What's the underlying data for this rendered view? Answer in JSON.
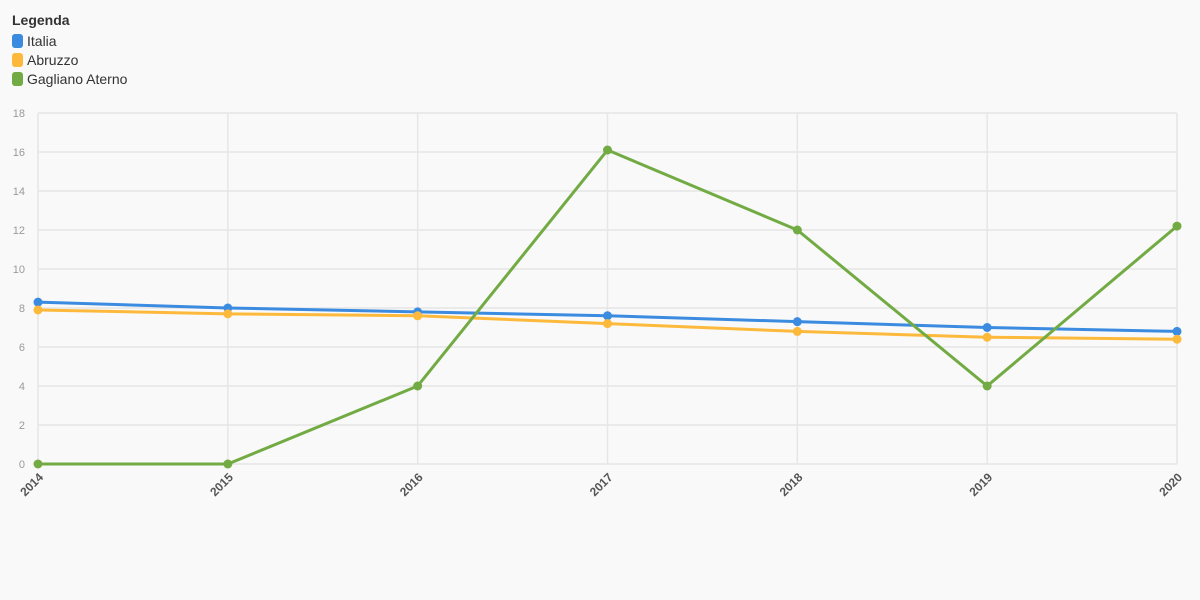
{
  "legend": {
    "title": "Legenda",
    "items": [
      {
        "label": "Italia",
        "color": "#3b8be0"
      },
      {
        "label": "Abruzzo",
        "color": "#fdb93b"
      },
      {
        "label": "Gagliano Aterno",
        "color": "#72ab43"
      }
    ]
  },
  "chart_data": {
    "type": "line",
    "title": "",
    "xlabel": "",
    "ylabel": "",
    "categories": [
      "2014",
      "2015",
      "2016",
      "2017",
      "2018",
      "2019",
      "2020"
    ],
    "yticks": [
      0,
      2,
      4,
      6,
      8,
      10,
      12,
      14,
      16,
      18
    ],
    "ylim": [
      0,
      18
    ],
    "grid": true,
    "legend_position": "top-left",
    "series": [
      {
        "name": "Italia",
        "color": "#3b8be0",
        "values": [
          8.3,
          8.0,
          7.8,
          7.6,
          7.3,
          7.0,
          6.8
        ]
      },
      {
        "name": "Abruzzo",
        "color": "#fdb93b",
        "values": [
          7.9,
          7.7,
          7.6,
          7.2,
          6.8,
          6.5,
          6.4
        ]
      },
      {
        "name": "Gagliano Aterno",
        "color": "#72ab43",
        "values": [
          0,
          0,
          4.0,
          16.1,
          12.0,
          4.0,
          12.2
        ]
      }
    ]
  }
}
